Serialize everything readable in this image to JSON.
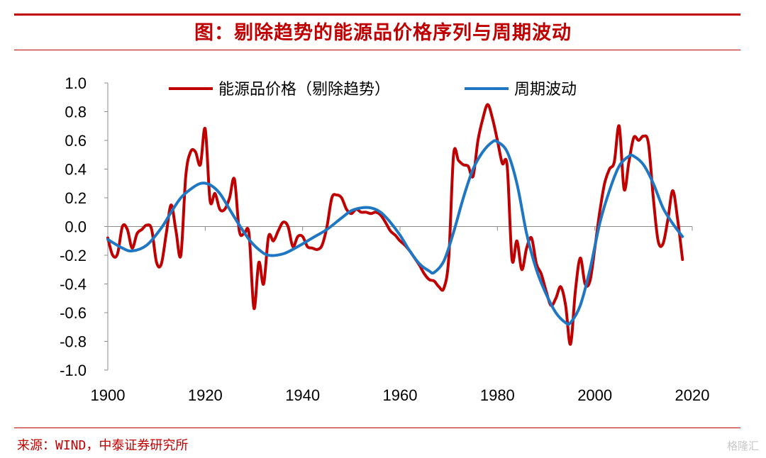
{
  "header": {
    "title": "图：剔除趋势的能源品价格序列与周期波动"
  },
  "footer": {
    "source": "来源：WIND，中泰证券研究所",
    "watermark": "格隆汇"
  },
  "colors": {
    "accent": "#c00000",
    "series_trend_removed": "#c00000",
    "series_cycle": "#1f77c4",
    "axis": "#8c8c8c"
  },
  "chart_data": {
    "type": "line",
    "title": "图：剔除趋势的能源品价格序列与周期波动",
    "xlabel": "",
    "ylabel": "",
    "xlim": [
      1900,
      2020
    ],
    "ylim": [
      -1.0,
      1.0
    ],
    "x_ticks": [
      1900,
      1920,
      1940,
      1960,
      1980,
      2000,
      2020
    ],
    "y_ticks": [
      1.0,
      0.8,
      0.6,
      0.4,
      0.2,
      0.0,
      -0.2,
      -0.4,
      -0.6,
      -0.8,
      -1.0
    ],
    "y_tick_labels": [
      "1.0",
      "0.8",
      "0.6",
      "0.4",
      "0.2",
      "0.0",
      "-0.2",
      "-0.4",
      "-0.6",
      "-0.8",
      "-1.0"
    ],
    "legend_position": "top",
    "series": [
      {
        "name": "能源品价格（剔除趋势）",
        "points": [
          [
            1900,
            -0.08
          ],
          [
            1901,
            -0.2
          ],
          [
            1902,
            -0.19
          ],
          [
            1903,
            0.0
          ],
          [
            1904,
            -0.02
          ],
          [
            1905,
            -0.15
          ],
          [
            1906,
            -0.05
          ],
          [
            1907,
            -0.02
          ],
          [
            1908,
            0.01
          ],
          [
            1909,
            -0.02
          ],
          [
            1910,
            -0.25
          ],
          [
            1911,
            -0.26
          ],
          [
            1912,
            -0.05
          ],
          [
            1913,
            0.15
          ],
          [
            1914,
            -0.03
          ],
          [
            1915,
            -0.2
          ],
          [
            1916,
            0.35
          ],
          [
            1917,
            0.52
          ],
          [
            1918,
            0.52
          ],
          [
            1919,
            0.43
          ],
          [
            1920,
            0.68
          ],
          [
            1921,
            0.18
          ],
          [
            1922,
            0.23
          ],
          [
            1923,
            0.12
          ],
          [
            1924,
            0.12
          ],
          [
            1925,
            0.2
          ],
          [
            1926,
            0.33
          ],
          [
            1927,
            -0.03
          ],
          [
            1928,
            -0.05
          ],
          [
            1929,
            -0.05
          ],
          [
            1930,
            -0.57
          ],
          [
            1931,
            -0.25
          ],
          [
            1932,
            -0.4
          ],
          [
            1933,
            -0.07
          ],
          [
            1934,
            -0.1
          ],
          [
            1935,
            -0.03
          ],
          [
            1936,
            0.03
          ],
          [
            1937,
            0.0
          ],
          [
            1938,
            -0.14
          ],
          [
            1939,
            -0.07
          ],
          [
            1940,
            -0.07
          ],
          [
            1941,
            -0.14
          ],
          [
            1942,
            -0.15
          ],
          [
            1943,
            -0.16
          ],
          [
            1944,
            -0.13
          ],
          [
            1945,
            0.0
          ],
          [
            1946,
            0.2
          ],
          [
            1947,
            0.22
          ],
          [
            1948,
            0.2
          ],
          [
            1949,
            0.12
          ],
          [
            1950,
            0.09
          ],
          [
            1951,
            0.12
          ],
          [
            1952,
            0.1
          ],
          [
            1953,
            0.1
          ],
          [
            1954,
            0.09
          ],
          [
            1955,
            0.1
          ],
          [
            1956,
            0.08
          ],
          [
            1957,
            0.03
          ],
          [
            1958,
            -0.03
          ],
          [
            1959,
            -0.06
          ],
          [
            1960,
            -0.1
          ],
          [
            1961,
            -0.13
          ],
          [
            1962,
            -0.17
          ],
          [
            1963,
            -0.22
          ],
          [
            1964,
            -0.27
          ],
          [
            1965,
            -0.33
          ],
          [
            1966,
            -0.37
          ],
          [
            1967,
            -0.38
          ],
          [
            1968,
            -0.42
          ],
          [
            1969,
            -0.43
          ],
          [
            1970,
            -0.22
          ],
          [
            1971,
            0.5
          ],
          [
            1972,
            0.46
          ],
          [
            1973,
            0.43
          ],
          [
            1974,
            0.42
          ],
          [
            1975,
            0.35
          ],
          [
            1976,
            0.6
          ],
          [
            1977,
            0.75
          ],
          [
            1978,
            0.85
          ],
          [
            1979,
            0.75
          ],
          [
            1980,
            0.6
          ],
          [
            1981,
            0.44
          ],
          [
            1982,
            0.42
          ],
          [
            1983,
            -0.23
          ],
          [
            1984,
            -0.1
          ],
          [
            1985,
            -0.3
          ],
          [
            1986,
            -0.15
          ],
          [
            1987,
            -0.08
          ],
          [
            1988,
            -0.26
          ],
          [
            1989,
            -0.33
          ],
          [
            1990,
            -0.45
          ],
          [
            1991,
            -0.55
          ],
          [
            1992,
            -0.5
          ],
          [
            1993,
            -0.42
          ],
          [
            1994,
            -0.55
          ],
          [
            1995,
            -0.82
          ],
          [
            1996,
            -0.45
          ],
          [
            1997,
            -0.22
          ],
          [
            1998,
            -0.4
          ],
          [
            1999,
            -0.38
          ],
          [
            2000,
            -0.15
          ],
          [
            2001,
            0.1
          ],
          [
            2002,
            0.3
          ],
          [
            2003,
            0.4
          ],
          [
            2004,
            0.45
          ],
          [
            2005,
            0.7
          ],
          [
            2006,
            0.26
          ],
          [
            2007,
            0.45
          ],
          [
            2008,
            0.62
          ],
          [
            2009,
            0.6
          ],
          [
            2010,
            0.63
          ],
          [
            2011,
            0.58
          ],
          [
            2012,
            0.2
          ],
          [
            2013,
            -0.1
          ],
          [
            2014,
            -0.12
          ],
          [
            2015,
            0.05
          ],
          [
            2016,
            0.25
          ],
          [
            2017,
            0.05
          ],
          [
            2018,
            -0.23
          ]
        ]
      },
      {
        "name": "周期波动",
        "points": [
          [
            1900,
            -0.09
          ],
          [
            1903,
            -0.15
          ],
          [
            1905,
            -0.17
          ],
          [
            1908,
            -0.13
          ],
          [
            1911,
            -0.01
          ],
          [
            1913,
            0.1
          ],
          [
            1915,
            0.2
          ],
          [
            1917,
            0.26
          ],
          [
            1919,
            0.3
          ],
          [
            1921,
            0.29
          ],
          [
            1923,
            0.23
          ],
          [
            1925,
            0.12
          ],
          [
            1927,
            0.01
          ],
          [
            1929,
            -0.09
          ],
          [
            1931,
            -0.16
          ],
          [
            1933,
            -0.2
          ],
          [
            1936,
            -0.19
          ],
          [
            1939,
            -0.14
          ],
          [
            1942,
            -0.08
          ],
          [
            1945,
            -0.02
          ],
          [
            1948,
            0.06
          ],
          [
            1950,
            0.11
          ],
          [
            1952,
            0.13
          ],
          [
            1954,
            0.13
          ],
          [
            1956,
            0.1
          ],
          [
            1958,
            0.03
          ],
          [
            1960,
            -0.06
          ],
          [
            1962,
            -0.17
          ],
          [
            1964,
            -0.26
          ],
          [
            1966,
            -0.31
          ],
          [
            1967,
            -0.32
          ],
          [
            1969,
            -0.24
          ],
          [
            1971,
            -0.04
          ],
          [
            1973,
            0.2
          ],
          [
            1975,
            0.4
          ],
          [
            1977,
            0.52
          ],
          [
            1979,
            0.59
          ],
          [
            1980,
            0.59
          ],
          [
            1982,
            0.52
          ],
          [
            1984,
            0.3
          ],
          [
            1986,
            -0.05
          ],
          [
            1988,
            -0.3
          ],
          [
            1990,
            -0.47
          ],
          [
            1992,
            -0.6
          ],
          [
            1994,
            -0.67
          ],
          [
            1995,
            -0.67
          ],
          [
            1997,
            -0.55
          ],
          [
            1999,
            -0.3
          ],
          [
            2001,
            0.02
          ],
          [
            2003,
            0.25
          ],
          [
            2005,
            0.42
          ],
          [
            2007,
            0.49
          ],
          [
            2008,
            0.49
          ],
          [
            2010,
            0.43
          ],
          [
            2012,
            0.3
          ],
          [
            2014,
            0.13
          ],
          [
            2016,
            0.02
          ],
          [
            2018,
            -0.07
          ]
        ]
      }
    ]
  }
}
